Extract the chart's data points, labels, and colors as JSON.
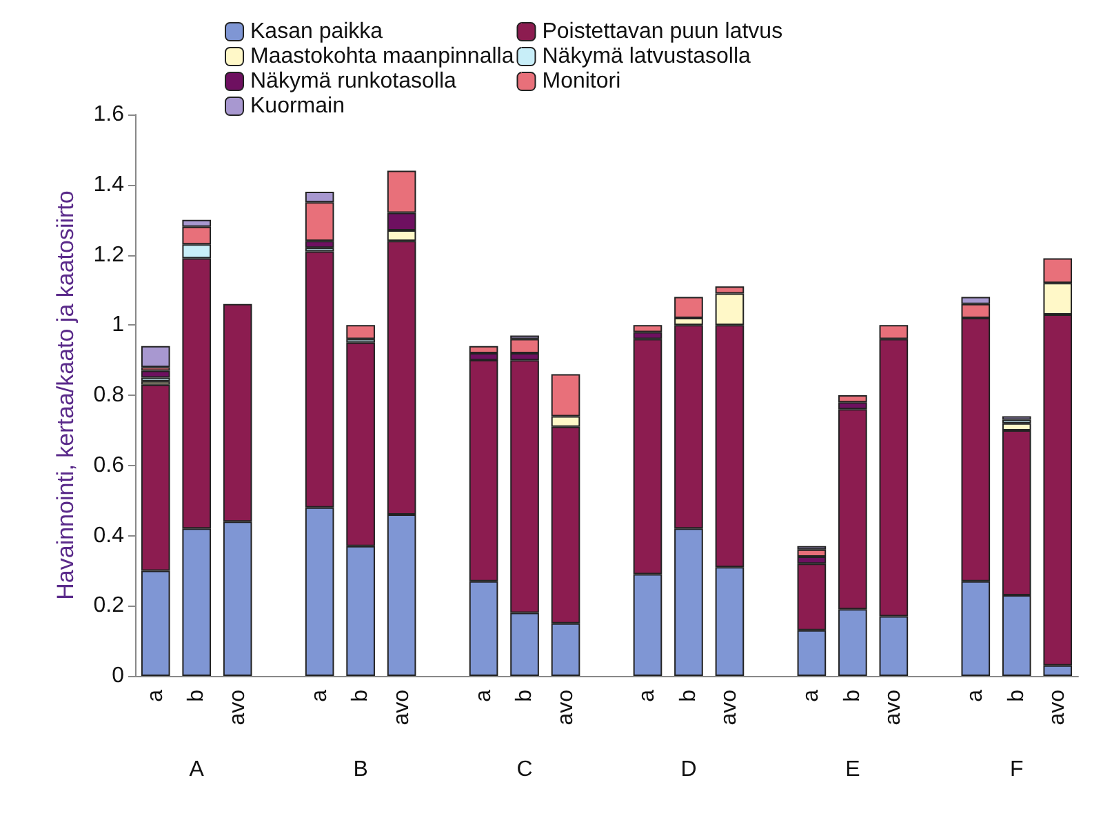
{
  "chart_data": {
    "type": "bar",
    "stacked": true,
    "ylabel": "Havainnointi, kertaa/kaato ja kaatosiirto",
    "categories": [
      "a",
      "b",
      "avo",
      null,
      "a",
      "b",
      "avo",
      null,
      "a",
      "b",
      "avo",
      null,
      "a",
      "b",
      "avo",
      null,
      "a",
      "b",
      "avo",
      null,
      "a",
      "b",
      "avo"
    ],
    "annotations": [
      "A",
      "B",
      "C",
      "D",
      "E",
      "F"
    ],
    "series": [
      {
        "name": "Kasan paikka",
        "color": "#7f96d4",
        "values": [
          0.3,
          0.42,
          0.44,
          null,
          0.48,
          0.37,
          0.46,
          null,
          0.27,
          0.18,
          0.15,
          null,
          0.29,
          0.42,
          0.31,
          null,
          0.13,
          0.19,
          0.17,
          null,
          0.27,
          0.23,
          0.03
        ]
      },
      {
        "name": "Poistettavan puun latvus",
        "color": "#8c1c50",
        "values": [
          0.53,
          0.77,
          0.62,
          null,
          0.73,
          0.58,
          0.78,
          null,
          0.63,
          0.72,
          0.56,
          null,
          0.67,
          0.58,
          0.69,
          null,
          0.19,
          0.57,
          0.79,
          null,
          0.75,
          0.47,
          1.0
        ]
      },
      {
        "name": "Maastokohta maanpinnalla",
        "color": "#fff8c8",
        "values": [
          0.01,
          null,
          null,
          null,
          null,
          null,
          0.03,
          null,
          null,
          null,
          0.03,
          null,
          null,
          0.02,
          0.09,
          null,
          null,
          null,
          null,
          null,
          null,
          0.02,
          0.09
        ]
      },
      {
        "name": "Näkymä latvustasolla",
        "color": "#c8eef8",
        "values": [
          0.01,
          0.04,
          null,
          null,
          0.01,
          0.01,
          null,
          null,
          null,
          null,
          null,
          null,
          null,
          null,
          null,
          null,
          null,
          null,
          null,
          null,
          null,
          0.01,
          null
        ]
      },
      {
        "name": "Näkymä runkotasolla",
        "color": "#6e1060",
        "values": [
          0.02,
          null,
          null,
          null,
          0.02,
          null,
          0.05,
          null,
          0.02,
          0.02,
          null,
          null,
          0.02,
          null,
          null,
          null,
          0.02,
          0.02,
          null,
          null,
          null,
          null,
          null
        ]
      },
      {
        "name": "Monitori",
        "color": "#e8707a",
        "values": [
          0.01,
          0.05,
          null,
          null,
          0.11,
          0.04,
          0.12,
          null,
          0.02,
          0.04,
          0.12,
          null,
          0.02,
          0.06,
          0.02,
          null,
          0.02,
          0.02,
          0.04,
          null,
          0.04,
          null,
          0.07
        ]
      },
      {
        "name": "Kuormain",
        "color": "#a898d0",
        "values": [
          0.06,
          0.02,
          null,
          null,
          0.03,
          null,
          null,
          null,
          null,
          0.01,
          null,
          null,
          null,
          null,
          null,
          null,
          0.01,
          null,
          null,
          null,
          0.02,
          0.01,
          null
        ]
      }
    ],
    "ylim": [
      0,
      1.6
    ],
    "yticks": [
      0,
      0.2,
      0.4,
      0.6,
      0.8,
      1,
      1.2,
      1.4,
      1.6
    ],
    "legend": "top"
  }
}
